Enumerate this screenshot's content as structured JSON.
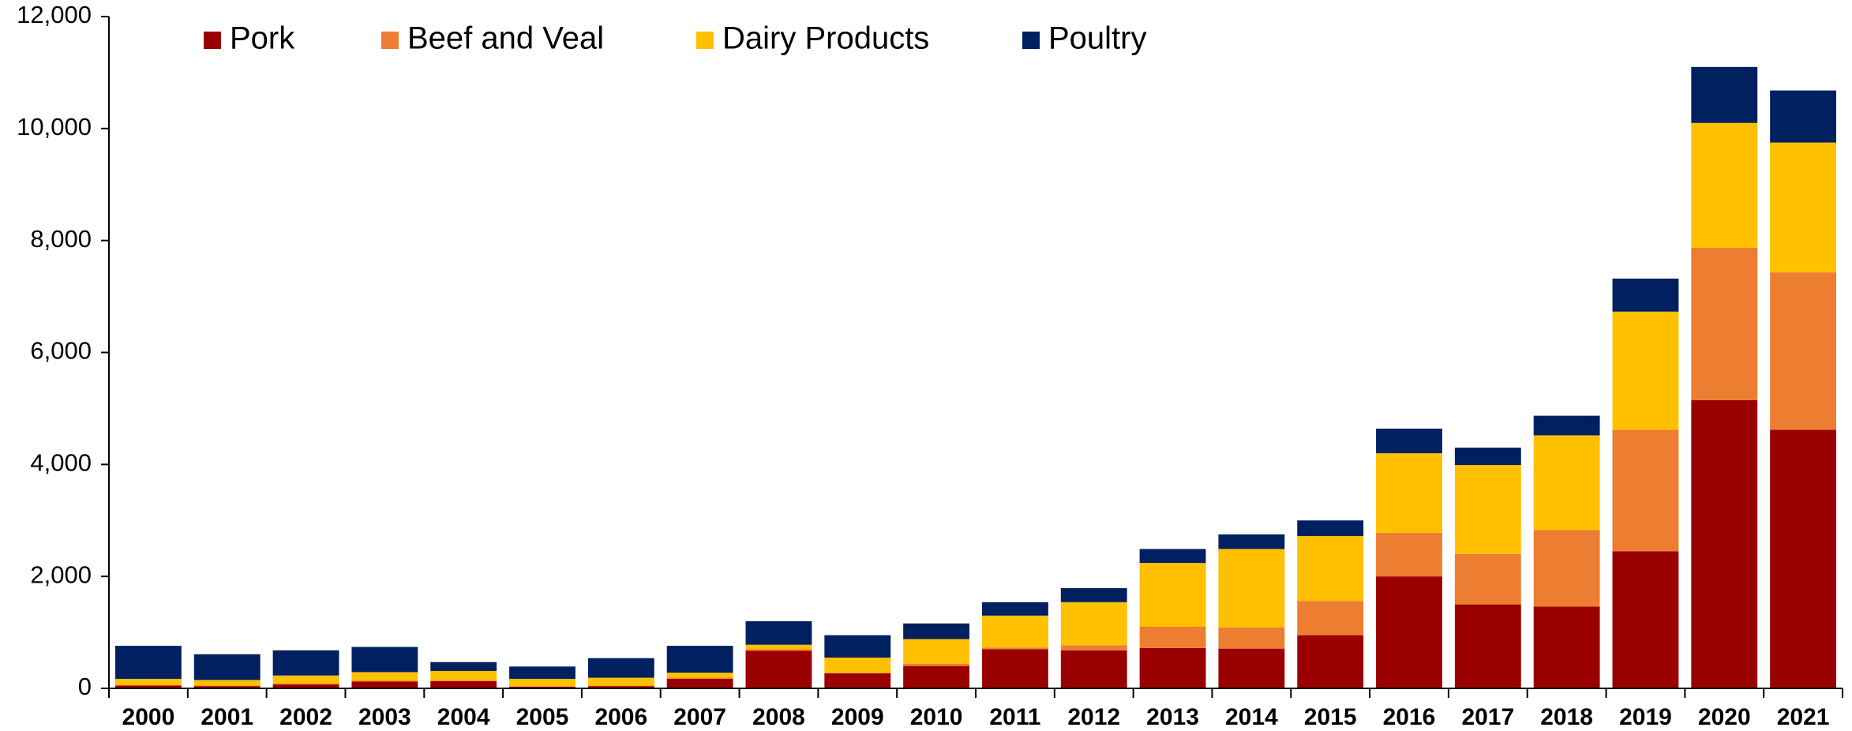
{
  "chart_data": {
    "type": "stacked_bar",
    "categories": [
      "2000",
      "2001",
      "2002",
      "2003",
      "2004",
      "2005",
      "2006",
      "2007",
      "2008",
      "2009",
      "2010",
      "2011",
      "2012",
      "2013",
      "2014",
      "2015",
      "2016",
      "2017",
      "2018",
      "2019",
      "2020",
      "2021"
    ],
    "series": [
      {
        "name": "Pork",
        "color": "#9b0000",
        "values": [
          50,
          40,
          70,
          120,
          130,
          30,
          40,
          170,
          670,
          270,
          400,
          700,
          680,
          720,
          710,
          950,
          2000,
          1500,
          1460,
          2450,
          5150,
          4620
        ]
      },
      {
        "name": "Beef and Veal",
        "color": "#ed7d31",
        "values": [
          10,
          10,
          20,
          20,
          10,
          10,
          10,
          20,
          30,
          10,
          40,
          30,
          90,
          380,
          380,
          610,
          780,
          900,
          1370,
          2170,
          2720,
          2810
        ]
      },
      {
        "name": "Dairy Products",
        "color": "#ffc000",
        "values": [
          110,
          100,
          140,
          150,
          170,
          130,
          140,
          90,
          80,
          270,
          440,
          570,
          770,
          1140,
          1400,
          1160,
          1420,
          1590,
          1690,
          2110,
          2230,
          2320
        ]
      },
      {
        "name": "Poultry",
        "color": "#002060",
        "values": [
          590,
          460,
          450,
          450,
          160,
          220,
          350,
          480,
          420,
          400,
          280,
          240,
          250,
          250,
          260,
          280,
          440,
          310,
          350,
          590,
          1000,
          930
        ]
      }
    ],
    "ylim": [
      0,
      12000
    ],
    "yticks": [
      0,
      {
        "value": 2000,
        "label": "2,000"
      },
      {
        "value": 4000,
        "label": "4,000"
      },
      {
        "value": 6000,
        "label": "6,000"
      },
      {
        "value": 8000,
        "label": "8,000"
      },
      {
        "value": 10000,
        "label": "10,000"
      },
      {
        "value": 12000,
        "label": "12,000"
      }
    ],
    "legend": "top"
  }
}
